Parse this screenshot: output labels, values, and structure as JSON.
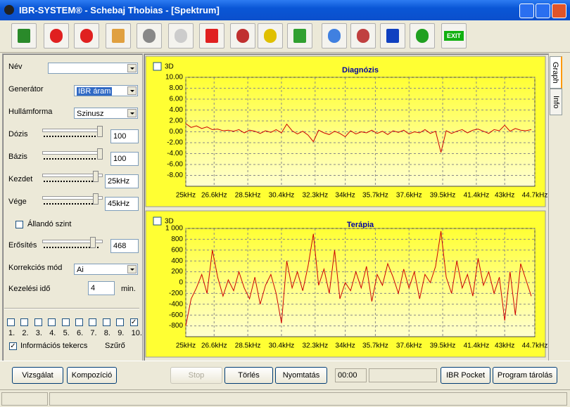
{
  "window": {
    "title": "IBR-SYSTEM® - Schebaj Thobias - [Spektrum]"
  },
  "toolbar": {
    "exit_label": "EXIT"
  },
  "form": {
    "name_label": "Név",
    "generator": {
      "label": "Generátor",
      "value": "IBR áram"
    },
    "waveform": {
      "label": "Hullámforma",
      "value": "Szinusz"
    },
    "dose": {
      "label": "Dózis",
      "value": "100"
    },
    "base": {
      "label": "Bázis",
      "value": "100"
    },
    "start": {
      "label": "Kezdet",
      "value": "25kHz"
    },
    "end": {
      "label": "Vége",
      "value": "45kHz"
    },
    "constant_level": {
      "label": "Állandó szint",
      "checked": false
    },
    "gain": {
      "label": "Erősítés",
      "value": "468"
    },
    "correction": {
      "label": "Korrekciós mód",
      "value": "Ai"
    },
    "duration": {
      "label": "Kezelési idő",
      "value": "4",
      "unit": "min."
    },
    "channels": {
      "labels": [
        "1.",
        "2.",
        "3.",
        "4.",
        "5.",
        "6.",
        "7.",
        "8.",
        "9.",
        "10."
      ],
      "checked": [
        false,
        false,
        false,
        false,
        false,
        false,
        false,
        false,
        false,
        true
      ]
    },
    "info_coil": {
      "label": "Információs tekercs",
      "checked": true
    },
    "filter": {
      "label": "Szűrő"
    }
  },
  "tabs": [
    "Graph",
    "Info"
  ],
  "buttons": {
    "exam": "Vizsgálat",
    "composition": "Kompozíció",
    "stop": "Stop",
    "clear": "Törlés",
    "print": "Nyomtatás",
    "time": "00:00",
    "pocket": "IBR Pocket",
    "store": "Program tárolás"
  },
  "chart_data": [
    {
      "type": "line",
      "title": "Diagnózis",
      "checkbox_label": "3D",
      "background": "#ffff33",
      "grid": true,
      "x": [
        25,
        25.3,
        25.6,
        25.9,
        26.2,
        26.5,
        26.8,
        27.1,
        27.4,
        27.7,
        28,
        28.3,
        28.6,
        28.9,
        29.2,
        29.5,
        29.8,
        30.1,
        30.4,
        30.7,
        31,
        31.3,
        31.6,
        31.9,
        32.2,
        32.5,
        32.8,
        33.1,
        33.4,
        33.7,
        34,
        34.3,
        34.6,
        34.9,
        35.2,
        35.5,
        35.8,
        36.1,
        36.4,
        36.7,
        37,
        37.3,
        37.6,
        37.9,
        38.2,
        38.5,
        38.8,
        39.1,
        39.4,
        39.7,
        40,
        40.3,
        40.6,
        40.9,
        41.2,
        41.5,
        41.8,
        42.1,
        42.4,
        42.7,
        43,
        43.3,
        43.6,
        43.9,
        44.2,
        44.5
      ],
      "series": [
        {
          "color": "#cc0000",
          "values": [
            1.5,
            0.8,
            1.1,
            0.6,
            0.9,
            0.4,
            0.5,
            0.2,
            0.3,
            0.1,
            0.4,
            -0.2,
            0.3,
            0.1,
            -0.3,
            0.2,
            -0.1,
            0.4,
            -0.2,
            1.4,
            0.2,
            -0.4,
            0.1,
            -0.6,
            -1.8,
            0.3,
            -0.2,
            -0.5,
            0.1,
            -0.3,
            -0.9,
            0.2,
            -0.4,
            0,
            -0.2,
            0.3,
            -0.3,
            0.1,
            -0.5,
            0.2,
            -0.1,
            0.3,
            -0.4,
            0,
            -0.2,
            0.4,
            -0.3,
            0.1,
            -3.8,
            0.2,
            -0.3,
            0.1,
            0.4,
            -0.2,
            0.3,
            0.5,
            0.1,
            -0.3,
            0.4,
            0.2,
            1.2,
            0.1,
            0.6,
            0.3,
            0.2,
            0.4
          ]
        }
      ],
      "xlim": [
        25,
        44.7
      ],
      "xticks": [
        {
          "value": 25,
          "label": "25kHz"
        },
        {
          "value": 26.6,
          "label": "26.6kHz"
        },
        {
          "value": 28.5,
          "label": "28.5kHz"
        },
        {
          "value": 30.4,
          "label": "30.4kHz"
        },
        {
          "value": 32.3,
          "label": "32.3kHz"
        },
        {
          "value": 34,
          "label": "34kHz"
        },
        {
          "value": 35.7,
          "label": "35.7kHz"
        },
        {
          "value": 37.6,
          "label": "37.6kHz"
        },
        {
          "value": 39.5,
          "label": "39.5kHz"
        },
        {
          "value": 41.4,
          "label": "41.4kHz"
        },
        {
          "value": 43,
          "label": "43kHz"
        },
        {
          "value": 44.7,
          "label": "44.7kHz"
        }
      ],
      "ylim": [
        -10,
        10
      ],
      "yticks": [
        {
          "value": 10,
          "label": "10.00"
        },
        {
          "value": 8,
          "label": "8.00"
        },
        {
          "value": 6,
          "label": "6.00"
        },
        {
          "value": 4,
          "label": "4.00"
        },
        {
          "value": 2,
          "label": "2.00"
        },
        {
          "value": 0,
          "label": "0.00"
        },
        {
          "value": -2,
          "label": "-2.00"
        },
        {
          "value": -4,
          "label": "-4.00"
        },
        {
          "value": -6,
          "label": "-6.00"
        },
        {
          "value": -8,
          "label": "-8.00"
        }
      ]
    },
    {
      "type": "line",
      "title": "Terápia",
      "checkbox_label": "3D",
      "background": "#ffff33",
      "grid": true,
      "x": [
        25,
        25.3,
        25.6,
        25.9,
        26.2,
        26.5,
        26.8,
        27.1,
        27.4,
        27.7,
        28,
        28.3,
        28.6,
        28.9,
        29.2,
        29.5,
        29.8,
        30.1,
        30.4,
        30.7,
        31,
        31.3,
        31.6,
        31.9,
        32.2,
        32.5,
        32.8,
        33.1,
        33.4,
        33.7,
        34,
        34.3,
        34.6,
        34.9,
        35.2,
        35.5,
        35.8,
        36.1,
        36.4,
        36.7,
        37,
        37.3,
        37.6,
        37.9,
        38.2,
        38.5,
        38.8,
        39.1,
        39.4,
        39.7,
        40,
        40.3,
        40.6,
        40.9,
        41.2,
        41.5,
        41.8,
        42.1,
        42.4,
        42.7,
        43,
        43.3,
        43.6,
        43.9,
        44.2,
        44.5
      ],
      "series": [
        {
          "color": "#cc0000",
          "values": [
            -800,
            -300,
            -100,
            150,
            -200,
            600,
            100,
            -250,
            50,
            -150,
            200,
            -100,
            -300,
            100,
            -400,
            -50,
            150,
            -200,
            -750,
            400,
            -100,
            200,
            -150,
            300,
            900,
            -50,
            250,
            -200,
            600,
            -300,
            0,
            -150,
            200,
            -100,
            300,
            -350,
            150,
            -50,
            350,
            100,
            -200,
            250,
            -100,
            200,
            -300,
            150,
            0,
            300,
            950,
            100,
            -200,
            400,
            -100,
            150,
            -250,
            450,
            -50,
            200,
            -200,
            100,
            -700,
            200,
            -600,
            350,
            50,
            -250
          ]
        }
      ],
      "xlim": [
        25,
        44.7
      ],
      "xticks": [
        {
          "value": 25,
          "label": "25kHz"
        },
        {
          "value": 26.6,
          "label": "26.6kHz"
        },
        {
          "value": 28.5,
          "label": "28.5kHz"
        },
        {
          "value": 30.4,
          "label": "30.4kHz"
        },
        {
          "value": 32.3,
          "label": "32.3kHz"
        },
        {
          "value": 34,
          "label": "34kHz"
        },
        {
          "value": 35.7,
          "label": "35.7kHz"
        },
        {
          "value": 37.6,
          "label": "37.6kHz"
        },
        {
          "value": 39.5,
          "label": "39.5kHz"
        },
        {
          "value": 41.4,
          "label": "41.4kHz"
        },
        {
          "value": 43,
          "label": "43kHz"
        },
        {
          "value": 44.7,
          "label": "44.7kHz"
        }
      ],
      "ylim": [
        -1000,
        1000
      ],
      "yticks": [
        {
          "value": 1000,
          "label": "1 000"
        },
        800,
        600,
        400,
        200,
        0,
        -200,
        -400,
        -600,
        -800
      ]
    }
  ]
}
